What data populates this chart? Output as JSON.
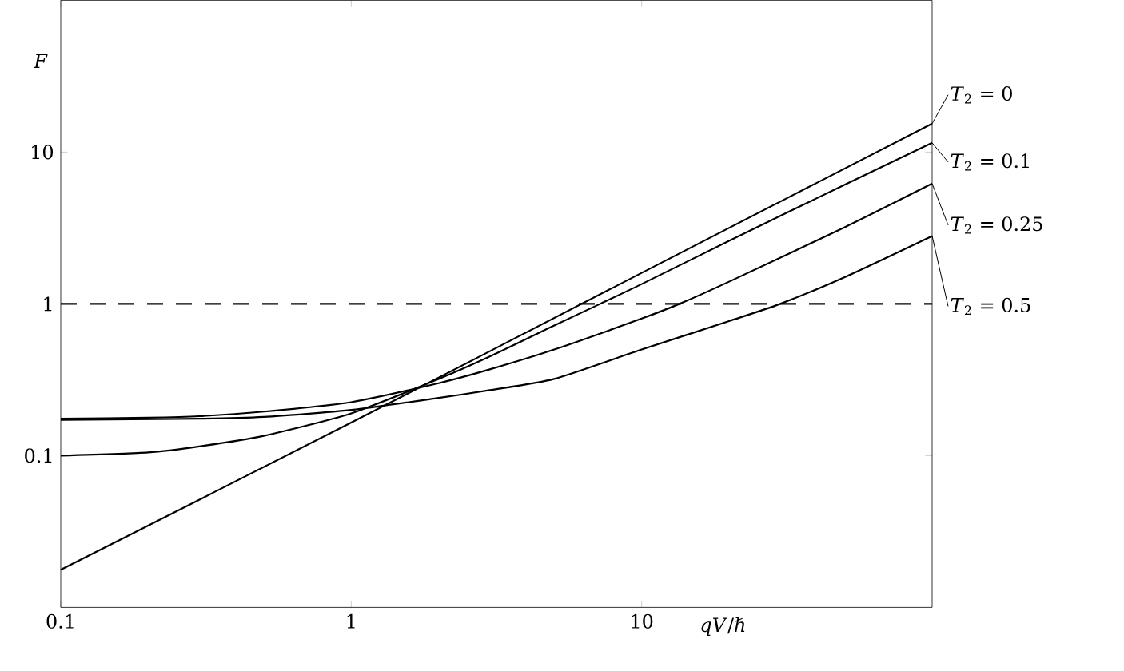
{
  "chart_data": {
    "type": "line",
    "xlabel": "*qV*/ℏ",
    "ylabel": "*F*",
    "log": "xy",
    "xlim": [
      0.1,
      100
    ],
    "ylim": [
      0.01,
      100
    ],
    "xticks": [
      0.1,
      1,
      10
    ],
    "yticks": [
      0.1,
      1,
      10
    ],
    "line_style": "solid",
    "grid": false,
    "ref_lines": [
      {
        "axis": "y",
        "value": 1,
        "line_style": "dashed",
        "color": "#000000"
      }
    ],
    "series": [
      {
        "name": "*T*$_{2}$ = 0",
        "color": "#000000",
        "x": [
          0.1,
          1,
          10,
          100
        ],
        "values": [
          0.0177,
          0.165,
          1.6,
          15.4
        ]
      },
      {
        "name": "*T*$_{2}$ = 0.1",
        "color": "#000000",
        "x": [
          0.1,
          0.2,
          0.3,
          0.5,
          1,
          2,
          3,
          5,
          7.2,
          10,
          20,
          50,
          100
        ],
        "values": [
          0.1,
          0.105,
          0.115,
          0.135,
          0.19,
          0.32,
          0.45,
          0.72,
          1.0,
          1.35,
          2.6,
          6.1,
          11.5
        ]
      },
      {
        "name": "*T*$_{2}$ = 0.25",
        "color": "#000000",
        "x": [
          0.1,
          0.2,
          0.3,
          0.5,
          1,
          2,
          3,
          5,
          10,
          13.5,
          20,
          50,
          100
        ],
        "values": [
          0.175,
          0.178,
          0.182,
          0.195,
          0.225,
          0.3,
          0.37,
          0.5,
          0.8,
          1.0,
          1.4,
          3.2,
          6.2
        ]
      },
      {
        "name": "*T*$_{2}$ = 0.5",
        "color": "#000000",
        "x": [
          0.1,
          0.3,
          0.5,
          1,
          2,
          3,
          5,
          10,
          20,
          30,
          50,
          100
        ],
        "values": [
          0.172,
          0.175,
          0.18,
          0.2,
          0.24,
          0.27,
          0.32,
          0.5,
          0.77,
          1.0,
          1.5,
          2.8
        ]
      }
    ]
  }
}
